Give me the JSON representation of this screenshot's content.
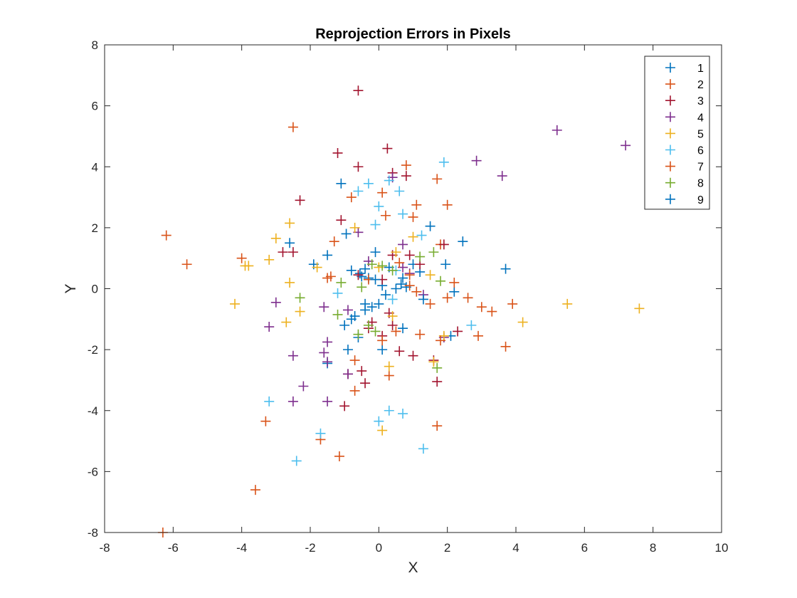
{
  "chart_data": {
    "type": "scatter",
    "title": "Reprojection Errors in Pixels",
    "xlabel": "X",
    "ylabel": "Y",
    "xlim": [
      -8,
      10
    ],
    "ylim": [
      -8,
      8
    ],
    "xticks": [
      "-8",
      "-6",
      "-4",
      "-2",
      "0",
      "2",
      "4",
      "6",
      "8",
      "10"
    ],
    "yticks": [
      "-8",
      "-6",
      "-4",
      "-2",
      "0",
      "2",
      "4",
      "6",
      "8"
    ],
    "marker": "+",
    "grid": false,
    "legend_position": "top-right",
    "series": [
      {
        "name": "1",
        "color": "#0072BD",
        "points": [
          [
            -1.1,
            3.45
          ],
          [
            -0.95,
            1.8
          ],
          [
            -2.6,
            1.5
          ],
          [
            -1.5,
            1.1
          ],
          [
            -1.9,
            0.8
          ],
          [
            -0.8,
            0.6
          ],
          [
            -0.55,
            0.5
          ],
          [
            -0.5,
            0.4
          ],
          [
            -0.3,
            0.35
          ],
          [
            -0.1,
            1.2
          ],
          [
            0.1,
            0.1
          ],
          [
            0.3,
            0.7
          ],
          [
            0.65,
            0.15
          ],
          [
            0.8,
            0.05
          ],
          [
            1.0,
            0.8
          ],
          [
            1.2,
            0.55
          ],
          [
            1.5,
            2.05
          ],
          [
            2.45,
            1.55
          ],
          [
            1.95,
            0.8
          ],
          [
            3.7,
            0.65
          ],
          [
            2.2,
            -0.1
          ],
          [
            2.1,
            -1.55
          ],
          [
            0.7,
            -1.3
          ],
          [
            0.1,
            -2.0
          ],
          [
            -0.9,
            -2.0
          ],
          [
            -1.5,
            -2.45
          ],
          [
            -0.6,
            -1.6
          ],
          [
            -1.0,
            -1.2
          ],
          [
            -0.4,
            -0.5
          ],
          [
            -0.2,
            -0.6
          ]
        ]
      },
      {
        "name": "2",
        "color": "#D95319",
        "points": [
          [
            -6.2,
            1.75
          ],
          [
            -5.6,
            0.8
          ],
          [
            -2.5,
            5.3
          ],
          [
            -1.4,
            0.4
          ],
          [
            -0.8,
            3.0
          ],
          [
            0.1,
            3.15
          ],
          [
            0.8,
            4.05
          ],
          [
            1.0,
            2.35
          ],
          [
            1.7,
            3.6
          ],
          [
            2.0,
            2.75
          ],
          [
            1.8,
            1.45
          ],
          [
            2.2,
            0.2
          ],
          [
            2.6,
            -0.3
          ],
          [
            3.0,
            -0.6
          ],
          [
            3.3,
            -0.75
          ],
          [
            3.9,
            -0.5
          ],
          [
            2.9,
            -1.55
          ],
          [
            3.7,
            -1.9
          ],
          [
            1.7,
            -4.5
          ],
          [
            -1.15,
            -5.5
          ],
          [
            -1.7,
            -4.95
          ],
          [
            -3.3,
            -4.35
          ],
          [
            -3.6,
            -6.6
          ],
          [
            -6.3,
            -8.0
          ],
          [
            0.3,
            -2.85
          ],
          [
            -0.7,
            -3.35
          ],
          [
            -0.7,
            -2.35
          ],
          [
            1.5,
            -0.5
          ],
          [
            1.2,
            -1.5
          ],
          [
            0.9,
            0.1
          ]
        ]
      },
      {
        "name": "3",
        "color": "#A2142F",
        "points": [
          [
            -0.6,
            6.5
          ],
          [
            0.25,
            4.6
          ],
          [
            -1.2,
            4.45
          ],
          [
            -0.6,
            4.0
          ],
          [
            0.4,
            3.8
          ],
          [
            0.8,
            3.7
          ],
          [
            -2.3,
            2.9
          ],
          [
            -1.1,
            2.25
          ],
          [
            -2.5,
            1.2
          ],
          [
            -2.8,
            1.2
          ],
          [
            -0.6,
            0.45
          ],
          [
            0.1,
            0.3
          ],
          [
            0.4,
            1.1
          ],
          [
            0.9,
            1.1
          ],
          [
            1.2,
            0.8
          ],
          [
            1.9,
            1.45
          ],
          [
            0.3,
            -0.8
          ],
          [
            0.4,
            -1.2
          ],
          [
            -0.2,
            -1.1
          ],
          [
            0.6,
            -2.05
          ],
          [
            1.0,
            -2.2
          ],
          [
            1.6,
            -2.35
          ],
          [
            1.7,
            -3.05
          ],
          [
            -0.4,
            -3.1
          ],
          [
            -0.5,
            -2.7
          ],
          [
            -0.9,
            -2.8
          ],
          [
            -1.0,
            -3.85
          ],
          [
            2.3,
            -1.4
          ],
          [
            0.1,
            -1.55
          ],
          [
            -0.3,
            -1.3
          ]
        ]
      },
      {
        "name": "4",
        "color": "#7E2F8E",
        "points": [
          [
            5.2,
            5.2
          ],
          [
            7.2,
            4.7
          ],
          [
            2.85,
            4.2
          ],
          [
            3.6,
            3.7
          ],
          [
            0.4,
            3.65
          ],
          [
            -0.6,
            1.85
          ],
          [
            0.7,
            1.45
          ],
          [
            0.9,
            0.5
          ],
          [
            -3.0,
            -0.45
          ],
          [
            -3.2,
            -1.25
          ],
          [
            -1.6,
            -0.6
          ],
          [
            -1.5,
            -1.75
          ],
          [
            -1.6,
            -2.1
          ],
          [
            -1.5,
            -2.4
          ],
          [
            -2.2,
            -3.2
          ],
          [
            -2.5,
            -3.7
          ],
          [
            -2.5,
            -2.2
          ],
          [
            -1.5,
            -3.7
          ],
          [
            -0.9,
            -2.8
          ],
          [
            -0.9,
            -0.7
          ],
          [
            1.9,
            -1.6
          ],
          [
            1.3,
            -0.2
          ],
          [
            0.7,
            0.7
          ],
          [
            -0.3,
            0.9
          ]
        ]
      },
      {
        "name": "5",
        "color": "#EDB120",
        "points": [
          [
            -4.2,
            -0.5
          ],
          [
            -3.9,
            0.75
          ],
          [
            -3.8,
            0.75
          ],
          [
            -3.2,
            0.95
          ],
          [
            -3.0,
            1.65
          ],
          [
            -2.6,
            2.15
          ],
          [
            -2.6,
            0.2
          ],
          [
            -2.7,
            -1.1
          ],
          [
            -2.3,
            -0.75
          ],
          [
            -1.8,
            0.7
          ],
          [
            -0.7,
            2.0
          ],
          [
            0.0,
            0.7
          ],
          [
            0.5,
            1.2
          ],
          [
            1.0,
            1.7
          ],
          [
            1.5,
            0.45
          ],
          [
            0.4,
            -0.9
          ],
          [
            0.3,
            -2.55
          ],
          [
            0.1,
            -4.65
          ],
          [
            1.6,
            -2.4
          ],
          [
            1.9,
            -1.55
          ],
          [
            4.2,
            -1.1
          ],
          [
            5.5,
            -0.5
          ],
          [
            7.6,
            -0.65
          ]
        ]
      },
      {
        "name": "6",
        "color": "#4DBEEE",
        "points": [
          [
            1.9,
            4.15
          ],
          [
            0.3,
            3.55
          ],
          [
            -0.3,
            3.45
          ],
          [
            -0.6,
            3.2
          ],
          [
            0.6,
            3.2
          ],
          [
            0.0,
            2.7
          ],
          [
            0.7,
            2.45
          ],
          [
            1.25,
            1.75
          ],
          [
            -0.1,
            2.1
          ],
          [
            0.5,
            0.6
          ],
          [
            -1.2,
            -0.15
          ],
          [
            0.4,
            -0.35
          ],
          [
            2.7,
            -1.2
          ],
          [
            0.3,
            -4.0
          ],
          [
            0.7,
            -4.1
          ],
          [
            0.0,
            -4.35
          ],
          [
            1.3,
            -5.25
          ],
          [
            -1.7,
            -4.75
          ],
          [
            -2.4,
            -5.65
          ],
          [
            -3.2,
            -3.7
          ]
        ]
      },
      {
        "name": "7",
        "color": "#D95319",
        "points": [
          [
            -4.0,
            1.0
          ],
          [
            -1.3,
            1.55
          ],
          [
            -1.5,
            0.35
          ],
          [
            0.2,
            2.4
          ],
          [
            1.1,
            2.75
          ],
          [
            0.6,
            0.85
          ],
          [
            1.1,
            -0.1
          ],
          [
            2.0,
            -0.3
          ],
          [
            1.8,
            -1.7
          ],
          [
            0.1,
            -1.7
          ],
          [
            0.5,
            -1.4
          ],
          [
            -0.3,
            0.3
          ],
          [
            0.9,
            0.45
          ]
        ]
      },
      {
        "name": "8",
        "color": "#77AC30",
        "points": [
          [
            -2.3,
            -0.3
          ],
          [
            -1.2,
            -0.85
          ],
          [
            -0.2,
            0.8
          ],
          [
            0.1,
            0.75
          ],
          [
            0.4,
            0.6
          ],
          [
            1.2,
            1.05
          ],
          [
            1.6,
            1.2
          ],
          [
            1.8,
            0.25
          ],
          [
            1.7,
            -2.6
          ],
          [
            -0.3,
            -1.2
          ],
          [
            -0.1,
            -1.4
          ],
          [
            -0.6,
            -1.5
          ],
          [
            -0.5,
            0.05
          ],
          [
            -1.1,
            0.2
          ]
        ]
      },
      {
        "name": "9",
        "color": "#0072BD",
        "points": [
          [
            -0.7,
            -0.9
          ],
          [
            -0.4,
            -0.7
          ],
          [
            0.0,
            -0.5
          ],
          [
            0.2,
            -0.2
          ],
          [
            0.5,
            0.0
          ],
          [
            0.7,
            0.35
          ],
          [
            1.3,
            -0.35
          ],
          [
            -0.1,
            0.3
          ],
          [
            -0.4,
            0.65
          ],
          [
            -0.8,
            -1.0
          ]
        ]
      }
    ]
  }
}
